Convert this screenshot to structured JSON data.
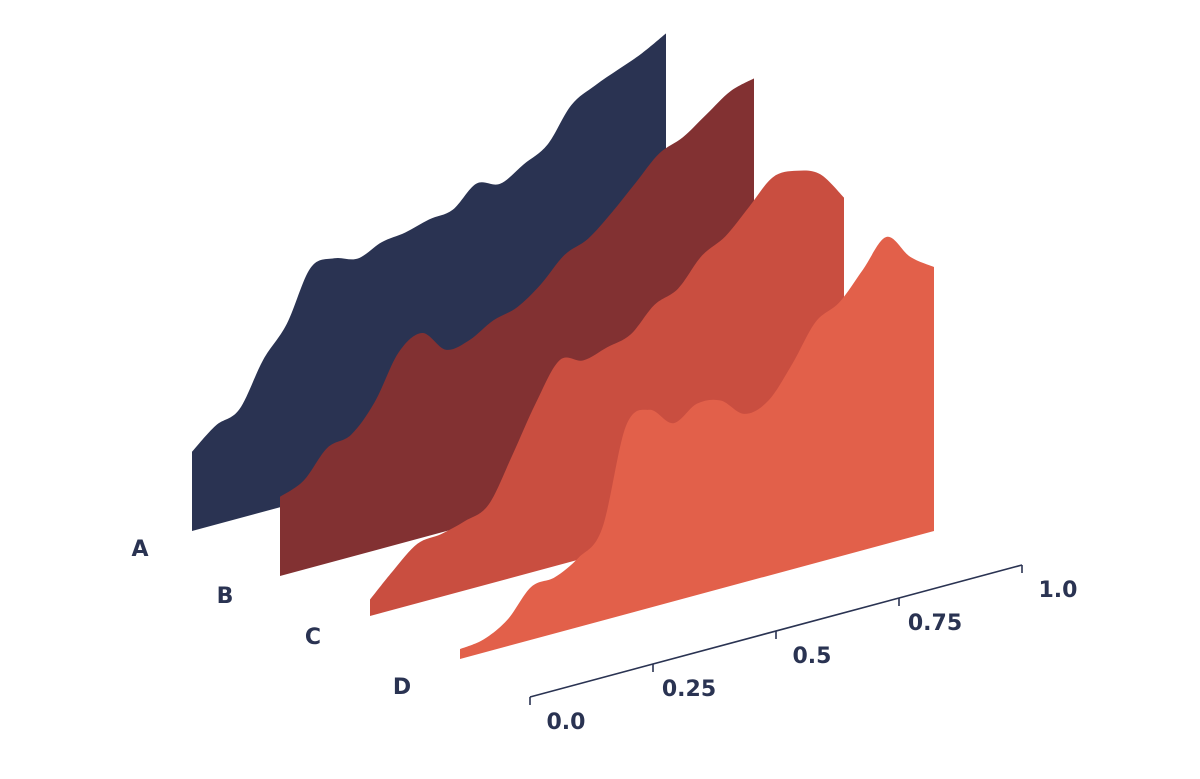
{
  "chart_data": {
    "type": "area",
    "subtype": "3d-ridgeline",
    "title": "",
    "xlabel": "",
    "ylabel": "",
    "xlim": [
      0.0,
      1.0
    ],
    "x": [
      0.0,
      0.05,
      0.1,
      0.15,
      0.2,
      0.25,
      0.3,
      0.35,
      0.4,
      0.45,
      0.5,
      0.55,
      0.6,
      0.65,
      0.7,
      0.75,
      0.8,
      0.85,
      0.9,
      0.95,
      1.0
    ],
    "x_tick_labels": [
      "0.0",
      "0.25",
      "0.5",
      "0.75",
      "1.0"
    ],
    "x_tick_values": [
      0.0,
      0.25,
      0.5,
      0.75,
      1.0
    ],
    "series": [
      {
        "name": "A",
        "color": "#2a3352",
        "values": [
          0.24,
          0.3,
          0.33,
          0.46,
          0.55,
          0.7,
          0.71,
          0.69,
          0.72,
          0.73,
          0.75,
          0.76,
          0.82,
          0.8,
          0.84,
          0.88,
          0.98,
          1.02,
          1.05,
          1.08,
          1.12
        ]
      },
      {
        "name": "B",
        "color": "#823132",
        "values": [
          0.24,
          0.27,
          0.35,
          0.37,
          0.45,
          0.58,
          0.62,
          0.55,
          0.56,
          0.6,
          0.62,
          0.67,
          0.74,
          0.77,
          0.83,
          0.9,
          0.97,
          1.0,
          1.05,
          1.1,
          1.12
        ]
      },
      {
        "name": "C",
        "color": "#c94e40",
        "values": [
          0.05,
          0.12,
          0.18,
          0.19,
          0.21,
          0.24,
          0.37,
          0.51,
          0.62,
          0.6,
          0.62,
          0.64,
          0.71,
          0.74,
          0.82,
          0.86,
          0.93,
          1.0,
          1.0,
          0.97,
          0.88
        ]
      },
      {
        "name": "D",
        "color": "#e2604a",
        "values": [
          0.03,
          0.04,
          0.08,
          0.16,
          0.17,
          0.21,
          0.28,
          0.57,
          0.6,
          0.54,
          0.58,
          0.57,
          0.51,
          0.53,
          0.62,
          0.73,
          0.77,
          0.85,
          0.93,
          0.85,
          0.8
        ]
      }
    ],
    "grid": false,
    "legend": "none"
  }
}
